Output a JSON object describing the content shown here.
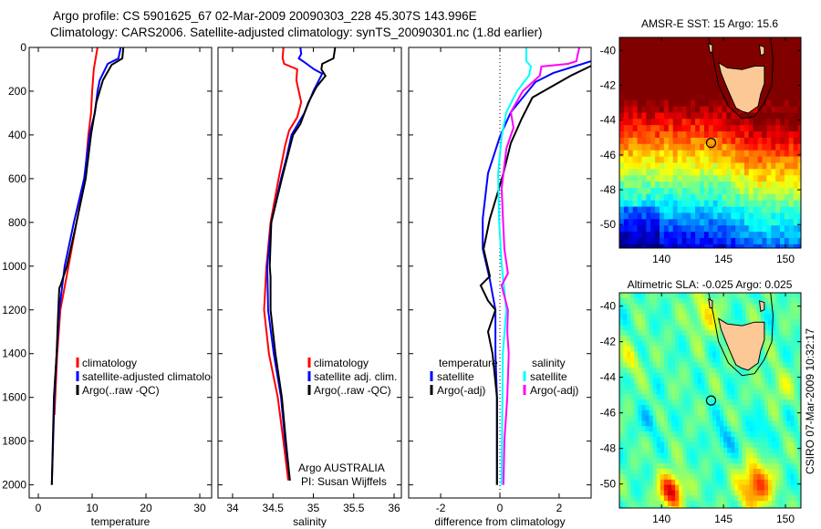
{
  "header": {
    "line1": "Argo profile: CS 5901625_67 02-Mar-2009 20090303_228 45.307S 143.996E",
    "line2": "Climatology: CARS2006. Satellite-adjusted climatology: synTS_20090301.nc (1.8d earlier)"
  },
  "footer_vertical": "CSIRO 07-Mar-2009 10:32:17",
  "colors": {
    "climatology": "#ff0000",
    "satellite": "#0000ff",
    "argo": "#000000",
    "sal_satellite": "#00ffff",
    "sal_argo": "#ff00ff",
    "land": "#fcc896"
  },
  "chart_data": [
    {
      "type": "line",
      "xlabel": "temperature",
      "ylabel": "",
      "xlim": [
        -1.7,
        32.2
      ],
      "ylim": [
        0,
        2060
      ],
      "y_reversed": true,
      "xticks": [
        "0",
        "10",
        "20",
        "30"
      ],
      "xtick_values": [
        0,
        10,
        20,
        30
      ],
      "yticks": [
        "0",
        "200",
        "400",
        "600",
        "800",
        "1000",
        "1200",
        "1400",
        "1600",
        "1800",
        "2000"
      ],
      "ytick_values": [
        0,
        200,
        400,
        600,
        800,
        1000,
        1200,
        1400,
        1600,
        1800,
        2000
      ],
      "legend": [
        "climatology",
        "satellite-adjusted climatology",
        "Argo(..raw -QC)"
      ],
      "series": [
        {
          "name": "climatology",
          "color": "#ff0000",
          "depth": [
            0,
            100,
            200,
            300,
            400,
            600,
            800,
            1000,
            1200,
            1400,
            1680
          ],
          "values": [
            11.0,
            10.3,
            10.0,
            9.8,
            9.3,
            8.6,
            7.1,
            5.6,
            4.1,
            3.5,
            3.0
          ]
        },
        {
          "name": "satellite-adjusted climatology",
          "color": "#0000ff",
          "depth": [
            0,
            50,
            75,
            150,
            200,
            300,
            400,
            600,
            800,
            1000,
            1200,
            1400,
            1600,
            2000
          ],
          "values": [
            15.3,
            14.9,
            12.9,
            11.4,
            11.0,
            10.5,
            9.5,
            8.5,
            6.6,
            4.9,
            3.9,
            3.4,
            3.0,
            2.5
          ]
        },
        {
          "name": "Argo(..raw -QC)",
          "color": "#000000",
          "depth": [
            0,
            50,
            80,
            150,
            250,
            400,
            600,
            800,
            1000,
            1090,
            1100,
            1200,
            1400,
            1600,
            2000
          ],
          "values": [
            15.8,
            15.6,
            13.6,
            12.0,
            10.8,
            9.8,
            8.8,
            7.1,
            5.3,
            4.1,
            3.9,
            3.7,
            3.4,
            2.9,
            2.5
          ]
        }
      ]
    },
    {
      "type": "line",
      "xlabel": "salinity",
      "xlim": [
        33.82,
        36.09
      ],
      "ylim": [
        0,
        2060
      ],
      "y_reversed": true,
      "xticks": [
        "34",
        "34.5",
        "35",
        "35.5",
        "36"
      ],
      "xtick_values": [
        34,
        34.5,
        35,
        35.5,
        36
      ],
      "ytick_values": [
        0,
        200,
        400,
        600,
        800,
        1000,
        1200,
        1400,
        1600,
        1800,
        2000
      ],
      "legend": [
        "climatology",
        "satellite adj. clim.",
        "Argo(..raw -QC)"
      ],
      "annotations": [
        "Argo AUSTRALIA",
        "PI: Susan Wijffels"
      ],
      "series": [
        {
          "name": "climatology",
          "color": "#ff0000",
          "depth": [
            0,
            50,
            75,
            100,
            150,
            200,
            250,
            320,
            380,
            450,
            600,
            800,
            1000,
            1200,
            1400,
            1600,
            1800,
            1980
          ],
          "values": [
            34.63,
            34.62,
            34.64,
            34.8,
            34.79,
            34.82,
            34.85,
            34.8,
            34.7,
            34.65,
            34.57,
            34.47,
            34.42,
            34.39,
            34.45,
            34.56,
            34.63,
            34.69
          ]
        },
        {
          "name": "satellite adj. clim.",
          "color": "#0000ff",
          "depth": [
            0,
            30,
            50,
            70,
            100,
            120,
            200,
            300,
            400,
            500,
            600,
            800,
            1000,
            1200,
            1400,
            1600,
            1800,
            1980
          ],
          "values": [
            34.84,
            34.85,
            34.82,
            34.9,
            35.01,
            35.11,
            35.0,
            34.89,
            34.73,
            34.67,
            34.6,
            34.48,
            34.43,
            34.44,
            34.51,
            34.6,
            34.65,
            34.71
          ]
        },
        {
          "name": "Argo(..raw -QC)",
          "color": "#000000",
          "depth": [
            0,
            50,
            75,
            100,
            130,
            180,
            250,
            350,
            400,
            600,
            800,
            1000,
            1050,
            1200,
            1400,
            1600,
            1800,
            1980
          ],
          "values": [
            35.27,
            35.25,
            35.11,
            35.1,
            35.15,
            35.04,
            34.94,
            34.84,
            34.75,
            34.61,
            34.48,
            34.46,
            34.47,
            34.47,
            34.53,
            34.61,
            34.66,
            34.71
          ]
        }
      ]
    },
    {
      "type": "line",
      "xlabel": "difference from climatology",
      "xlim": [
        -3.08,
        3.08
      ],
      "ylim": [
        0,
        2060
      ],
      "y_reversed": true,
      "xticks": [
        "-2",
        "0",
        "2"
      ],
      "xtick_values": [
        -2,
        0,
        2
      ],
      "ytick_values": [
        0,
        200,
        400,
        600,
        800,
        1000,
        1200,
        1400,
        1600,
        1800,
        2000
      ],
      "legend_headers": [
        "temperature",
        "salinity"
      ],
      "legend": [
        "satellite",
        "Argo(-adj)",
        "satellite",
        "Argo(-adj)"
      ],
      "series": [
        {
          "name": "temperature satellite",
          "color": "#0000ff",
          "depth": [
            62,
            117,
            158,
            296,
            408,
            575,
            783,
            921,
            1062,
            1200,
            1400,
            1600,
            2000
          ],
          "values": [
            3.1,
            1.8,
            1.2,
            0.37,
            0.0,
            -0.4,
            -0.58,
            -0.58,
            -0.34,
            -0.15,
            -0.15,
            -0.1,
            -0.1
          ]
        },
        {
          "name": "temperature Argo(-adj)",
          "color": "#000000",
          "depth": [
            83,
            129,
            229,
            325,
            437,
            575,
            671,
            783,
            921,
            1046,
            1088,
            1158,
            1200,
            1300,
            1400,
            1600,
            2000
          ],
          "values": [
            3.1,
            2.4,
            1.1,
            0.74,
            0.37,
            0.12,
            -0.09,
            -0.34,
            -0.55,
            -0.34,
            -0.65,
            -0.4,
            -0.15,
            -0.4,
            -0.25,
            -0.1,
            -0.1
          ]
        },
        {
          "name": "salinity satellite",
          "color": "#00ffff",
          "depth": [
            0,
            62,
            87,
            129,
            200,
            296,
            408,
            575,
            783,
            992,
            1200,
            1400,
            2000
          ],
          "values": [
            0.89,
            0.89,
            1.05,
            0.98,
            0.58,
            0.22,
            0.06,
            -0.06,
            -0.03,
            0.06,
            0.22,
            0.1,
            0.06
          ]
        },
        {
          "name": "salinity Argo(-adj)",
          "color": "#ff00ff",
          "depth": [
            0,
            63,
            75,
            87,
            129,
            200,
            296,
            367,
            462,
            646,
            921,
            1033,
            1088,
            1200,
            1300,
            1400,
            1600,
            1800,
            2000
          ],
          "values": [
            2.68,
            2.58,
            2.3,
            1.4,
            1.35,
            0.77,
            0.37,
            0.46,
            0.22,
            0.06,
            0.15,
            0.27,
            0.06,
            0.27,
            0.25,
            0.3,
            0.25,
            0.15,
            0.12
          ]
        }
      ]
    },
    {
      "type": "heatmap",
      "title": "AMSR-E SST: 15 Argo: 15.6",
      "xlim": [
        136.6,
        151.25
      ],
      "ylim": [
        -51.35,
        -39.25
      ],
      "xticks": [
        "140",
        "145",
        "150"
      ],
      "xtick_values": [
        140,
        145,
        150
      ],
      "yticks": [
        "-40",
        "-42",
        "-44",
        "-46",
        "-48",
        "-50"
      ],
      "ytick_values": [
        -40,
        -42,
        -44,
        -46,
        -48,
        -50
      ],
      "argo_position": {
        "lon": 143.996,
        "lat": -45.307
      }
    },
    {
      "type": "heatmap",
      "title": "Altimetric SLA: -0.025 Argo: 0.025",
      "xlim": [
        136.6,
        151.25
      ],
      "ylim": [
        -51.35,
        -39.25
      ],
      "xticks": [
        "140",
        "145",
        "150"
      ],
      "xtick_values": [
        140,
        145,
        150
      ],
      "yticks": [
        "-40",
        "-42",
        "-44",
        "-46",
        "-48",
        "-50"
      ],
      "ytick_values": [
        -40,
        -42,
        -44,
        -46,
        -48,
        -50
      ],
      "argo_position": {
        "lon": 143.996,
        "lat": -45.307
      }
    }
  ]
}
